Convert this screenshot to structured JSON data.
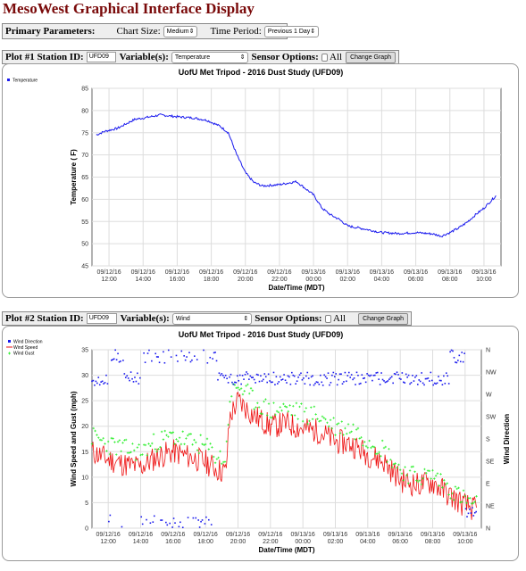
{
  "page_title": "MesoWest Graphical Interface Display",
  "controls": {
    "primary_label": "Primary Parameters:",
    "chart_size_label": "Chart Size:",
    "chart_size_value": "Medium",
    "time_period_label": "Time Period:",
    "time_period_value": "Previous 1 Day"
  },
  "plot1_controls": {
    "station_label": "Plot #1 Station ID:",
    "station_value": "UFD09",
    "variable_label": "Variable(s):",
    "variable_value": "Temperature",
    "sensor_label": "Sensor Options:",
    "all_label": "All",
    "button_label": "Change Graph"
  },
  "plot2_controls": {
    "station_label": "Plot #2 Station ID:",
    "station_value": "UFD09",
    "variable_label": "Variable(s):",
    "variable_value": "Wind",
    "sensor_label": "Sensor Options:",
    "all_label": "All",
    "button_label": "Change Graph"
  },
  "colors": {
    "title": "#7a0a0a",
    "blue": "#1a1aee",
    "red": "#ee1111",
    "green": "#22ee22"
  },
  "chart_data": [
    {
      "type": "line",
      "title": "UofU Met Tripod - 2016 Dust Study (UFD09)",
      "xlabel": "Date/Time (MDT)",
      "ylabel": "Temperature ( F)",
      "ylim": [
        45,
        85
      ],
      "yticks": [
        45,
        50,
        55,
        60,
        65,
        70,
        75,
        80,
        85
      ],
      "x_ticks": [
        [
          "09/12/16",
          "12:00"
        ],
        [
          "09/12/16",
          "14:00"
        ],
        [
          "09/12/16",
          "16:00"
        ],
        [
          "09/12/16",
          "18:00"
        ],
        [
          "09/12/16",
          "20:00"
        ],
        [
          "09/12/16",
          "22:00"
        ],
        [
          "09/13/16",
          "00:00"
        ],
        [
          "09/13/16",
          "02:00"
        ],
        [
          "09/13/16",
          "04:00"
        ],
        [
          "09/13/16",
          "06:00"
        ],
        [
          "09/13/16",
          "08:00"
        ],
        [
          "09/13/16",
          "10:00"
        ]
      ],
      "legend": [
        "Temperature"
      ],
      "legend_position": "top-left",
      "grid": true,
      "series": [
        {
          "name": "Temperature",
          "x": [
            "09/12 11:15",
            "09/12 11:45",
            "09/12 12:30",
            "09/12 13:00",
            "09/12 13:30",
            "09/12 14:00",
            "09/12 15:00",
            "09/12 16:00",
            "09/12 17:00",
            "09/12 17:45",
            "09/12 18:30",
            "09/12 19:00",
            "09/12 19:30",
            "09/12 20:00",
            "09/12 20:30",
            "09/12 21:00",
            "09/12 22:00",
            "09/12 23:00",
            "09/13 00:00",
            "09/13 00:30",
            "09/13 01:00",
            "09/13 01:30",
            "09/13 02:00",
            "09/13 03:00",
            "09/13 04:00",
            "09/13 05:00",
            "09/13 06:00",
            "09/13 07:00",
            "09/13 07:30",
            "09/13 08:00",
            "09/13 08:30",
            "09/13 09:00",
            "09/13 09:30",
            "09/13 10:00",
            "09/13 10:45"
          ],
          "values": [
            74.5,
            75.3,
            76,
            77,
            78,
            78.3,
            79,
            78.6,
            78.3,
            77.8,
            76.5,
            75,
            70,
            66,
            63.8,
            63,
            63.3,
            64,
            61,
            58,
            56.5,
            55.5,
            54,
            53.3,
            52.5,
            52.3,
            52.5,
            52.2,
            51.7,
            52.5,
            53.5,
            54.8,
            56.5,
            58,
            61
          ]
        }
      ]
    },
    {
      "type": "line",
      "title": "UofU Met Tripod - 2016 Dust Study (UFD09)",
      "xlabel": "Date/Time (MDT)",
      "ylabel": "Wind Speed and Gust (mph)",
      "y2label": "Wind Direction",
      "ylim": [
        0,
        35
      ],
      "yticks": [
        0,
        5,
        10,
        15,
        20,
        25,
        30,
        35
      ],
      "y2ticks": [
        "N",
        "NE",
        "E",
        "SE",
        "S",
        "SW",
        "W",
        "NW",
        "N"
      ],
      "x_ticks": [
        [
          "09/12/16",
          "12:00"
        ],
        [
          "09/12/16",
          "14:00"
        ],
        [
          "09/12/16",
          "16:00"
        ],
        [
          "09/12/16",
          "18:00"
        ],
        [
          "09/12/16",
          "20:00"
        ],
        [
          "09/12/16",
          "22:00"
        ],
        [
          "09/13/16",
          "00:00"
        ],
        [
          "09/13/16",
          "02:00"
        ],
        [
          "09/13/16",
          "04:00"
        ],
        [
          "09/13/16",
          "06:00"
        ],
        [
          "09/13/16",
          "08:00"
        ],
        [
          "09/13/16",
          "10:00"
        ]
      ],
      "legend": [
        "Wind Direction",
        "Wind Speed",
        "Wind Gust"
      ],
      "legend_position": "top-left",
      "grid": true,
      "series": [
        {
          "name": "Wind Speed",
          "x": [
            "09/12 11:00",
            "09/12 12:00",
            "09/12 13:00",
            "09/12 14:00",
            "09/12 15:00",
            "09/12 16:00",
            "09/12 17:00",
            "09/12 18:00",
            "09/12 18:45",
            "09/12 19:15",
            "09/12 19:30",
            "09/12 20:00",
            "09/12 21:00",
            "09/12 22:00",
            "09/12 23:00",
            "09/13 00:00",
            "09/13 01:00",
            "09/13 02:00",
            "09/13 03:00",
            "09/13 04:00",
            "09/13 05:00",
            "09/13 06:00",
            "09/13 07:00",
            "09/13 08:00",
            "09/13 09:00",
            "09/13 10:00",
            "09/13 10:45"
          ],
          "values": [
            15,
            13.5,
            12.5,
            12,
            14,
            15,
            14,
            13,
            11.5,
            11,
            22,
            25,
            22,
            20,
            20.5,
            19.5,
            19,
            17,
            16.5,
            14.5,
            13,
            9.5,
            8.5,
            9,
            6.5,
            4.5,
            3.5
          ]
        },
        {
          "name": "Wind Gust",
          "x": [
            "09/12 11:00",
            "09/12 12:00",
            "09/12 13:00",
            "09/12 14:00",
            "09/12 15:00",
            "09/12 16:00",
            "09/12 17:00",
            "09/12 18:00",
            "09/12 18:45",
            "09/12 19:15",
            "09/12 19:30",
            "09/12 20:00",
            "09/12 21:00",
            "09/12 22:00",
            "09/12 23:00",
            "09/13 00:00",
            "09/13 01:00",
            "09/13 02:00",
            "09/13 03:00",
            "09/13 04:00",
            "09/13 05:00",
            "09/13 06:00",
            "09/13 07:00",
            "09/13 08:00",
            "09/13 09:00",
            "09/13 10:00",
            "09/13 10:45"
          ],
          "values": [
            18,
            16.5,
            15.5,
            15,
            17,
            18,
            17,
            16,
            14,
            13.5,
            26,
            28,
            25,
            23,
            23.5,
            22.5,
            22,
            20,
            19.5,
            17.5,
            15.5,
            11.5,
            10,
            10.5,
            8,
            5.5,
            4.5
          ]
        },
        {
          "name": "Wind Direction",
          "x": [
            "09/12 11:00",
            "09/12 12:00",
            "09/12 13:00",
            "09/12 14:00",
            "09/12 15:00",
            "09/12 16:00",
            "09/12 17:00",
            "09/12 18:00",
            "09/12 18:45",
            "09/12 19:30",
            "09/12 20:00",
            "09/12 22:00",
            "09/13 00:00",
            "09/13 02:00",
            "09/13 04:00",
            "09/13 06:00",
            "09/13 07:00",
            "09/13 08:00",
            "09/13 09:00",
            "09/13 10:00",
            "09/13 10:45"
          ],
          "values": [
            "NW",
            "N",
            "NW",
            "N",
            "N",
            "N",
            "N",
            "N",
            "NW",
            "NW",
            "NW",
            "NW",
            "NW",
            "NW",
            "NW",
            "NW",
            "NW",
            "NW",
            "N",
            "NE",
            "NE"
          ]
        }
      ]
    }
  ]
}
